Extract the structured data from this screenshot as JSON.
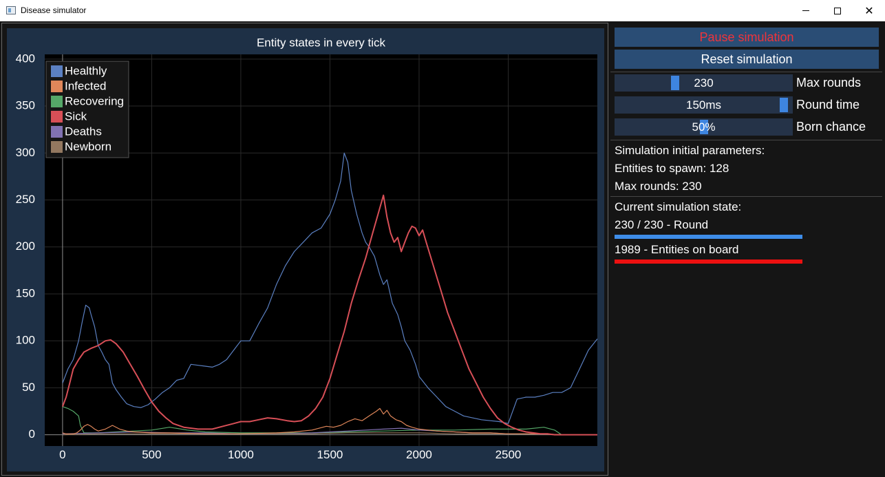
{
  "window": {
    "title": "Disease simulator",
    "minimize_icon": "minimize-icon",
    "maximize_icon": "maximize-icon",
    "close_label": "✕"
  },
  "controls": {
    "pause_label": "Pause simulation",
    "reset_label": "Reset simulation",
    "sliders": [
      {
        "value": "230",
        "label": "Max rounds",
        "level": 0.33
      },
      {
        "value": "150ms",
        "label": "Round time",
        "level": 0.97
      },
      {
        "value": "50%",
        "label": "Born chance",
        "level": 0.5
      }
    ]
  },
  "initial": {
    "heading": "Simulation initial parameters:",
    "entities": "Entities to spawn: 128",
    "max_rounds": "Max rounds: 230"
  },
  "current": {
    "heading": "Current simulation state:",
    "round_text": "230 / 230 - Round",
    "round_progress": 1.0,
    "entities_text": "1989 - Entities on board",
    "entities_progress": 1.0
  },
  "colors": {
    "pause_text": "#f0343b",
    "round_bar": "#3e8de8",
    "entities_bar": "#ec1010"
  },
  "chart_data": {
    "type": "line",
    "title": "Entity states in every tick",
    "xlim": [
      -100,
      3000
    ],
    "ylim": [
      -12,
      405
    ],
    "xticks": [
      0,
      500,
      1000,
      1500,
      2000,
      2500
    ],
    "yticks": [
      0,
      50,
      100,
      150,
      200,
      250,
      300,
      350,
      400
    ],
    "grid": true,
    "legend_position": "top-left",
    "series": [
      {
        "name": "Healthly",
        "color": "#5b80c2",
        "x": [
          0,
          30,
          60,
          90,
          110,
          130,
          150,
          160,
          180,
          200,
          220,
          240,
          260,
          280,
          300,
          330,
          360,
          400,
          440,
          480,
          520,
          560,
          600,
          640,
          680,
          720,
          760,
          800,
          840,
          880,
          920,
          960,
          1000,
          1050,
          1100,
          1150,
          1200,
          1250,
          1300,
          1350,
          1400,
          1450,
          1500,
          1530,
          1560,
          1580,
          1600,
          1620,
          1650,
          1680,
          1700,
          1720,
          1750,
          1780,
          1800,
          1820,
          1850,
          1880,
          1900,
          1920,
          1950,
          1980,
          2000,
          2050,
          2100,
          2150,
          2200,
          2250,
          2300,
          2350,
          2400,
          2450,
          2500,
          2550,
          2600,
          2650,
          2700,
          2750,
          2800,
          2850,
          2900,
          2950,
          3000
        ],
        "y": [
          55,
          70,
          80,
          100,
          120,
          138,
          135,
          128,
          115,
          95,
          88,
          80,
          75,
          55,
          48,
          40,
          33,
          30,
          29,
          32,
          38,
          45,
          50,
          58,
          60,
          75,
          74,
          73,
          72,
          75,
          80,
          90,
          100,
          100,
          118,
          135,
          160,
          180,
          195,
          205,
          215,
          220,
          235,
          250,
          270,
          300,
          290,
          260,
          235,
          215,
          205,
          200,
          190,
          170,
          160,
          165,
          140,
          128,
          115,
          100,
          90,
          75,
          62,
          50,
          40,
          30,
          25,
          20,
          18,
          16,
          15,
          14,
          12,
          38,
          40,
          40,
          42,
          45,
          45,
          50,
          70,
          90,
          102
        ]
      },
      {
        "name": "Infected",
        "color": "#e0875a",
        "x": [
          0,
          20,
          40,
          60,
          80,
          100,
          120,
          140,
          160,
          180,
          200,
          240,
          280,
          320,
          360,
          400,
          500,
          600,
          800,
          1000,
          1200,
          1300,
          1400,
          1440,
          1480,
          1520,
          1560,
          1600,
          1640,
          1680,
          1720,
          1760,
          1780,
          1800,
          1820,
          1840,
          1870,
          1900,
          1930,
          1960,
          2000,
          2050,
          2100,
          2200,
          2300,
          2400,
          2500,
          2600,
          2700,
          2800,
          2900,
          3000
        ],
        "y": [
          2,
          1,
          1,
          1,
          2,
          5,
          9,
          11,
          9,
          6,
          4,
          6,
          10,
          6,
          4,
          3,
          2,
          2,
          1,
          1,
          2,
          3,
          5,
          7,
          9,
          8,
          10,
          14,
          17,
          15,
          20,
          25,
          28,
          22,
          26,
          20,
          16,
          14,
          10,
          8,
          6,
          5,
          4,
          3,
          2,
          2,
          1,
          1,
          1,
          0,
          0,
          0
        ]
      },
      {
        "name": "Recovering",
        "color": "#55a868",
        "x": [
          0,
          30,
          60,
          90,
          100,
          120,
          200,
          300,
          400,
          500,
          600,
          700,
          800,
          1000,
          1200,
          1400,
          1600,
          1800,
          2000,
          2200,
          2400,
          2600,
          2700,
          2760,
          2800,
          2850,
          3000
        ],
        "y": [
          30,
          28,
          25,
          20,
          10,
          2,
          2,
          3,
          4,
          5,
          8,
          5,
          3,
          2,
          2,
          2,
          3,
          4,
          5,
          5,
          6,
          6,
          8,
          5,
          0,
          0,
          0
        ]
      },
      {
        "name": "Sick",
        "color": "#d84f57",
        "x": [
          0,
          20,
          40,
          60,
          90,
          120,
          160,
          200,
          240,
          270,
          300,
          340,
          380,
          420,
          460,
          500,
          540,
          580,
          620,
          680,
          760,
          840,
          900,
          960,
          1000,
          1050,
          1100,
          1150,
          1200,
          1260,
          1300,
          1340,
          1380,
          1420,
          1460,
          1500,
          1540,
          1580,
          1620,
          1660,
          1700,
          1740,
          1770,
          1800,
          1820,
          1840,
          1860,
          1880,
          1900,
          1920,
          1940,
          1960,
          1980,
          2000,
          2020,
          2040,
          2080,
          2120,
          2160,
          2200,
          2240,
          2280,
          2320,
          2360,
          2400,
          2440,
          2480,
          2520,
          2560,
          2600,
          2640,
          2680,
          2720,
          2760,
          2800,
          2900,
          3000
        ],
        "y": [
          30,
          40,
          55,
          70,
          80,
          88,
          92,
          95,
          100,
          101,
          97,
          88,
          75,
          62,
          48,
          35,
          25,
          18,
          12,
          8,
          6,
          6,
          9,
          12,
          14,
          14,
          16,
          18,
          17,
          15,
          14,
          15,
          20,
          28,
          40,
          60,
          85,
          110,
          140,
          165,
          188,
          215,
          235,
          255,
          232,
          215,
          205,
          210,
          195,
          205,
          215,
          222,
          220,
          212,
          218,
          205,
          180,
          155,
          130,
          110,
          90,
          70,
          55,
          40,
          28,
          18,
          12,
          8,
          5,
          3,
          2,
          1,
          1,
          0,
          0,
          0,
          0
        ]
      },
      {
        "name": "Deaths",
        "color": "#8172b2",
        "x": [
          0,
          200,
          400,
          600,
          800,
          1000,
          1200,
          1400,
          1500,
          1600,
          1700,
          1800,
          1900,
          2000,
          2100,
          2200,
          2300,
          2400,
          2500,
          2600,
          2700,
          2800,
          3000
        ],
        "y": [
          1,
          2,
          3,
          2,
          2,
          1,
          1,
          2,
          3,
          4,
          5,
          6,
          7,
          5,
          4,
          3,
          2,
          2,
          1,
          1,
          1,
          0,
          0
        ]
      },
      {
        "name": "Newborn",
        "color": "#937860",
        "x": [
          0,
          200,
          400,
          600,
          800,
          1000,
          1200,
          1400,
          1600,
          1800,
          2000,
          2200,
          2400,
          2600,
          2800,
          3000
        ],
        "y": [
          0,
          1,
          1,
          1,
          1,
          1,
          1,
          1,
          2,
          2,
          2,
          1,
          1,
          1,
          0,
          0
        ]
      }
    ]
  }
}
